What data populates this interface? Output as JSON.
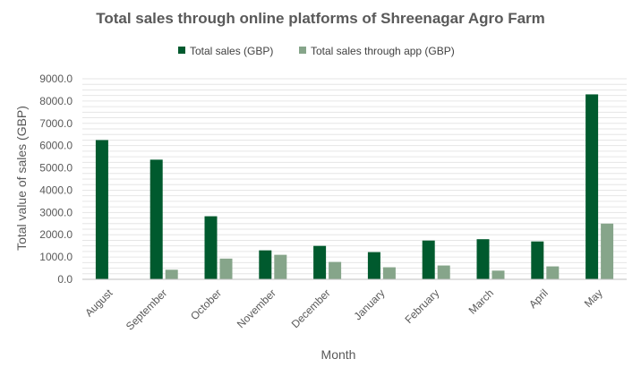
{
  "chart_data": {
    "type": "bar",
    "title": "Total sales through online platforms of Shreenagar Agro Farm",
    "xlabel": "Month",
    "ylabel": "Total value of sales (GBP)",
    "ylim": [
      0,
      9000
    ],
    "yticks": [
      "0.0",
      "1000.0",
      "2000.0",
      "3000.0",
      "4000.0",
      "5000.0",
      "6000.0",
      "7000.0",
      "8000.0",
      "9000.0"
    ],
    "grid": true,
    "legend_position": "top",
    "categories": [
      "August",
      "September",
      "October",
      "November",
      "December",
      "January",
      "February",
      "March",
      "April",
      "May"
    ],
    "series": [
      {
        "name": "Total sales (GBP)",
        "color": "#005a2e",
        "values": [
          6250,
          5370,
          2830,
          1300,
          1500,
          1220,
          1740,
          1800,
          1700,
          8300
        ]
      },
      {
        "name": "Total sales through app (GBP)",
        "color": "#86a58a",
        "values": [
          0,
          430,
          930,
          1100,
          780,
          540,
          620,
          390,
          580,
          2500
        ]
      }
    ]
  }
}
